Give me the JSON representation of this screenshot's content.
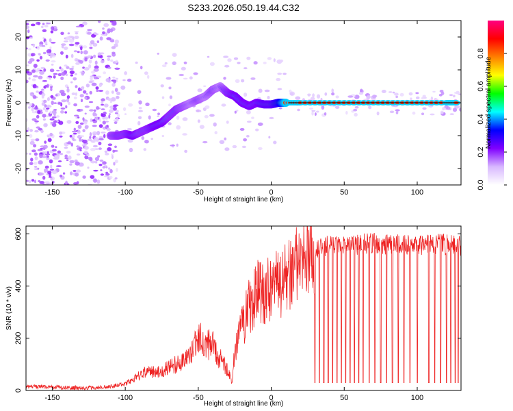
{
  "title": "S233.2026.050.19.44.C32",
  "chart_data": [
    {
      "type": "heatmap",
      "xlabel": "Height of straight line (km)",
      "ylabel": "Frequency (Hz)",
      "xlim": [
        -168,
        130
      ],
      "ylim": [
        -25,
        25
      ],
      "xticks": [
        -150,
        -100,
        -50,
        0,
        50,
        100
      ],
      "yticks": [
        -20,
        -10,
        0,
        10,
        20
      ],
      "colorbar": {
        "label": "Normalized spectral amplitude",
        "range": [
          0,
          1
        ],
        "ticks": [
          "0.0",
          "0.2",
          "0.4",
          "0.6",
          "0.8"
        ],
        "colors": [
          "#ffffff",
          "#d8b8ff",
          "#8000ff",
          "#0000ff",
          "#00ffff",
          "#00ff00",
          "#ffff00",
          "#ff8000",
          "#ff0000",
          "#ff0080"
        ]
      },
      "ridge": {
        "x": [
          -110,
          -105,
          -100,
          -95,
          -90,
          -85,
          -80,
          -75,
          -70,
          -65,
          -60,
          -55,
          -50,
          -45,
          -40,
          -35,
          -30,
          -25,
          -20,
          -15,
          -10,
          -5,
          0,
          5,
          10,
          20,
          40,
          60,
          80,
          100,
          120,
          128
        ],
        "y": [
          -10,
          -10,
          -9.5,
          -10,
          -9,
          -8,
          -7,
          -6,
          -4,
          -2,
          -1,
          0,
          1,
          2,
          4,
          5,
          3,
          2,
          0,
          -1,
          0,
          -0.5,
          -0.5,
          0,
          0,
          0,
          0,
          0,
          0,
          0,
          0,
          0
        ],
        "amplitude": [
          0.35,
          0.4,
          0.4,
          0.45,
          0.4,
          0.4,
          0.45,
          0.45,
          0.4,
          0.4,
          0.35,
          0.3,
          0.35,
          0.3,
          0.35,
          0.3,
          0.4,
          0.45,
          0.45,
          0.45,
          0.45,
          0.5,
          0.5,
          0.6,
          0.85,
          0.85,
          0.85,
          0.85,
          0.85,
          0.85,
          0.85,
          0.85
        ]
      }
    },
    {
      "type": "line",
      "xlabel": "Height of straight line (km)",
      "ylabel": "SNR (10 * v/v)",
      "xlim": [
        -168,
        130
      ],
      "ylim": [
        0,
        630
      ],
      "xticks": [
        -150,
        -100,
        -50,
        0,
        50,
        100
      ],
      "yticks": [
        0,
        200,
        400,
        600
      ],
      "series": [
        {
          "color": "#ee2222",
          "x": [
            -168,
            -150,
            -130,
            -110,
            -100,
            -95,
            -90,
            -85,
            -80,
            -75,
            -70,
            -65,
            -60,
            -55,
            -50,
            -45,
            -40,
            -35,
            -30,
            -27,
            -25,
            -20,
            -15,
            -10,
            -5,
            0,
            5,
            10,
            15,
            20,
            25,
            30,
            40,
            50,
            60,
            70,
            80,
            90,
            100,
            110,
            120,
            130
          ],
          "y": [
            15,
            12,
            10,
            15,
            25,
            40,
            60,
            70,
            70,
            75,
            90,
            100,
            110,
            130,
            200,
            180,
            170,
            120,
            80,
            30,
            150,
            250,
            320,
            370,
            380,
            390,
            400,
            420,
            450,
            490,
            520,
            540,
            560,
            555,
            560,
            565,
            560,
            560,
            555,
            560,
            560,
            555
          ],
          "dropouts": [
            30,
            33,
            36,
            39,
            42,
            45,
            48,
            51,
            54,
            57,
            60,
            63,
            67,
            71,
            75,
            79,
            83,
            87,
            91,
            95,
            100,
            108,
            112,
            116,
            120,
            123,
            126,
            128
          ]
        }
      ]
    }
  ]
}
